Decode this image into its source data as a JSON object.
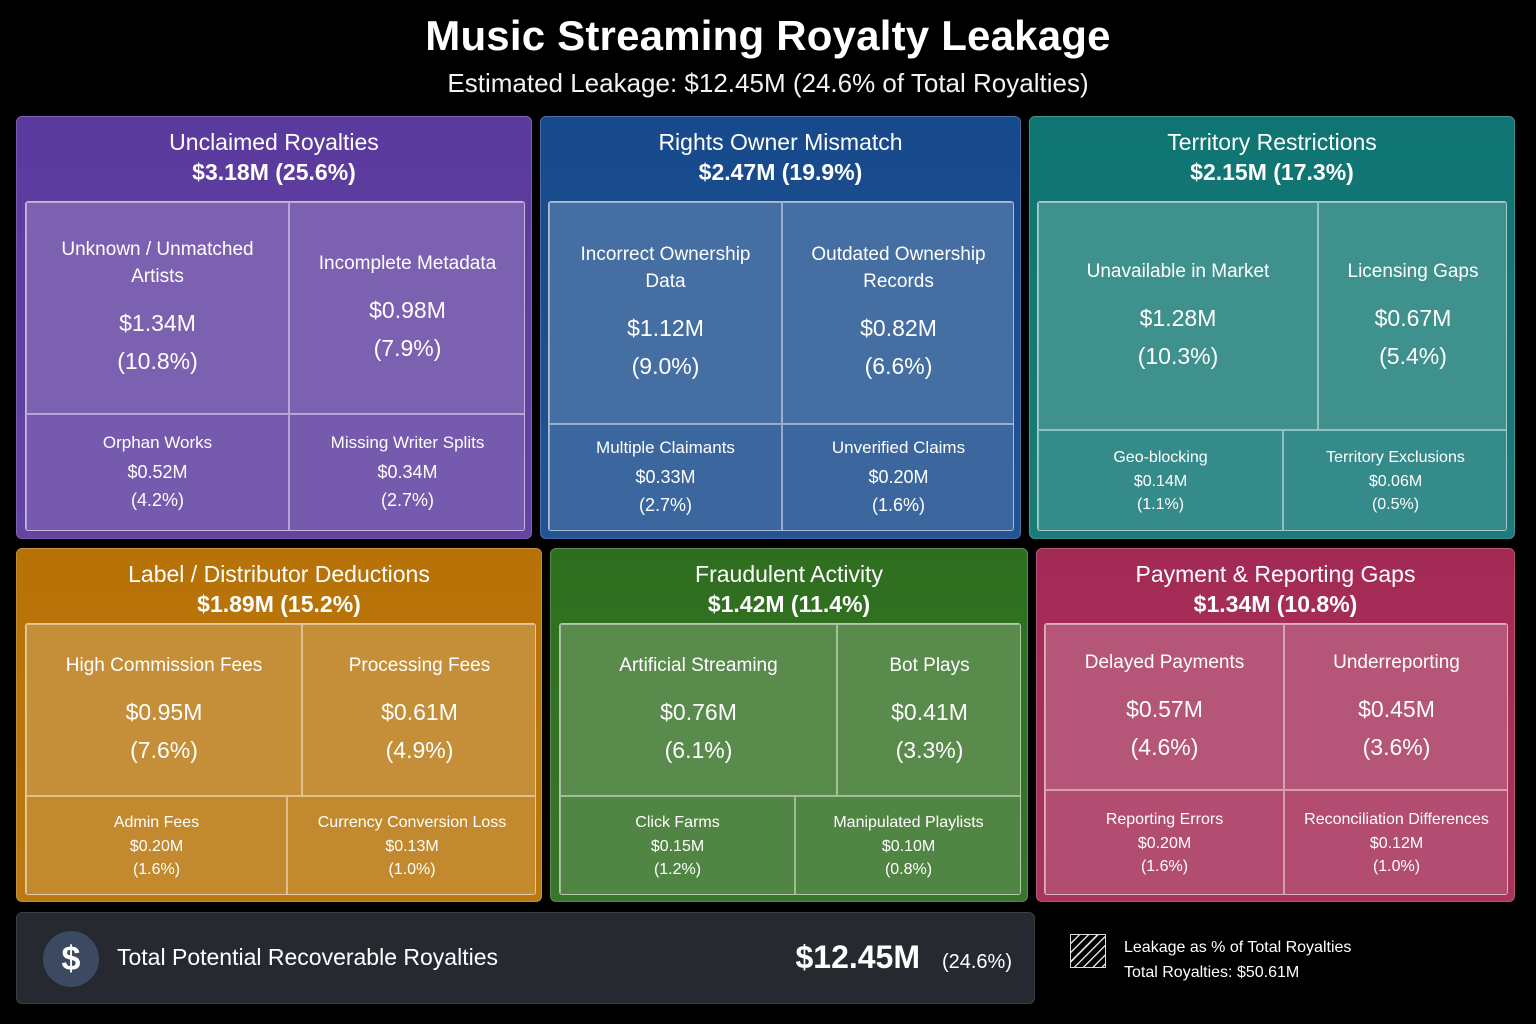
{
  "title": "Music Streaming Royalty Leakage",
  "subtitle": "Estimated Leakage: $12.45M (24.6% of Total Royalties)",
  "chart_data": {
    "type": "treemap",
    "unit": "$M",
    "total_leakage": 12.45,
    "total_leakage_pct": 24.6,
    "total_royalties": 50.61,
    "groups": [
      {
        "name": "Unclaimed Royalties",
        "value": 3.18,
        "pct": 25.6,
        "color": "#5b3a9e",
        "children": [
          {
            "name": "Unknown / Unmatched Artists",
            "value": 1.34,
            "pct": 10.8
          },
          {
            "name": "Incomplete Metadata",
            "value": 0.98,
            "pct": 7.9
          },
          {
            "name": "Orphan Works",
            "value": 0.52,
            "pct": 4.2
          },
          {
            "name": "Missing Writer Splits",
            "value": 0.34,
            "pct": 2.7
          }
        ]
      },
      {
        "name": "Rights Owner Mismatch",
        "value": 2.47,
        "pct": 19.9,
        "color": "#174a8c",
        "children": [
          {
            "name": "Incorrect Ownership Data",
            "value": 1.12,
            "pct": 9.0
          },
          {
            "name": "Outdated Ownership Records",
            "value": 0.82,
            "pct": 6.6
          },
          {
            "name": "Multiple Claimants",
            "value": 0.33,
            "pct": 2.7
          },
          {
            "name": "Unverified Claims",
            "value": 0.2,
            "pct": 1.6
          }
        ]
      },
      {
        "name": "Territory Restrictions",
        "value": 2.15,
        "pct": 17.3,
        "color": "#0f7572",
        "children": [
          {
            "name": "Unavailable in Market",
            "value": 1.28,
            "pct": 10.3
          },
          {
            "name": "Licensing Gaps",
            "value": 0.67,
            "pct": 5.4
          },
          {
            "name": "Geo-blocking",
            "value": 0.14,
            "pct": 1.1
          },
          {
            "name": "Territory Exclusions",
            "value": 0.06,
            "pct": 0.5
          }
        ]
      },
      {
        "name": "Label / Distributor Deductions",
        "value": 1.89,
        "pct": 15.2,
        "color": "#b77207",
        "children": [
          {
            "name": "High Commission Fees",
            "value": 0.95,
            "pct": 7.6
          },
          {
            "name": "Processing Fees",
            "value": 0.61,
            "pct": 4.9
          },
          {
            "name": "Admin Fees",
            "value": 0.2,
            "pct": 1.6
          },
          {
            "name": "Currency Conversion Loss",
            "value": 0.13,
            "pct": 1.0
          }
        ]
      },
      {
        "name": "Fraudulent Activity",
        "value": 1.42,
        "pct": 11.4,
        "color": "#2f6e1f",
        "children": [
          {
            "name": "Artificial Streaming",
            "value": 0.76,
            "pct": 6.1
          },
          {
            "name": "Bot Plays",
            "value": 0.41,
            "pct": 3.3
          },
          {
            "name": "Click Farms",
            "value": 0.15,
            "pct": 1.2
          },
          {
            "name": "Manipulated Playlists",
            "value": 0.1,
            "pct": 0.8
          }
        ]
      },
      {
        "name": "Payment & Reporting Gaps",
        "value": 1.34,
        "pct": 10.8,
        "color": "#a32a55",
        "children": [
          {
            "name": "Delayed Payments",
            "value": 0.57,
            "pct": 4.6
          },
          {
            "name": "Underreporting",
            "value": 0.45,
            "pct": 3.6
          },
          {
            "name": "Reporting Errors",
            "value": 0.2,
            "pct": 1.6
          },
          {
            "name": "Reconciliation Differences",
            "value": 0.12,
            "pct": 1.0
          }
        ]
      }
    ]
  },
  "footer": {
    "icon": "dollar-icon",
    "label": "Total Potential Recoverable Royalties",
    "value": "$12.45M",
    "pct": "(24.6%)"
  },
  "legend": {
    "line1": "Leakage as % of Total Royalties",
    "line2": "Total Royalties: $50.61M"
  }
}
